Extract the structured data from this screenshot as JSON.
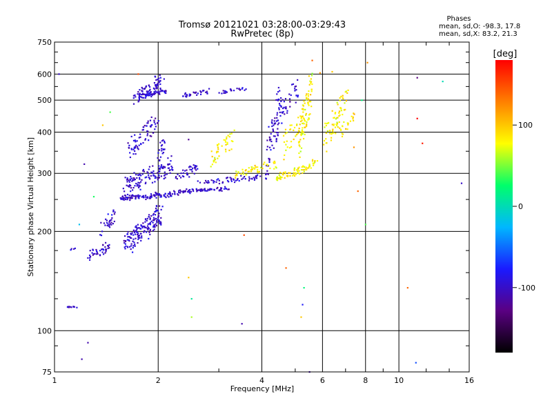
{
  "header": {
    "title_line1": "Tromsø 20121021 03:28:00-03:29:43",
    "title_line2": "RwPretec (8p)",
    "phases_title": "Phases",
    "phases_o": "mean, sd,O: -98.3, 17.8",
    "phases_x": "mean, sd,X: 83.2, 21.3"
  },
  "colorbar": {
    "unit_label": "[deg]",
    "ticks": [
      {
        "value": 100,
        "label": "100"
      },
      {
        "value": 0,
        "label": "0"
      },
      {
        "value": -100,
        "label": "-100"
      }
    ],
    "range": [
      -180,
      180
    ],
    "gradient_colors": [
      "#000000",
      "#5a0082",
      "#1a1aff",
      "#00b7ff",
      "#00ff6a",
      "#ffff00",
      "#ff8000",
      "#ff0000"
    ]
  },
  "chart_data": {
    "type": "scatter",
    "title": "Tromsø 20121021 03:28:00-03:29:43",
    "subtitle": "RwPretec (8p)",
    "xlabel": "Frequency [MHz]",
    "ylabel": "Stationary phase Virtual Height [km]",
    "xscale": "log",
    "yscale": "log",
    "xlim": [
      1,
      16
    ],
    "ylim": [
      75,
      750
    ],
    "grid": true,
    "x_ticks": [
      {
        "value": 1,
        "label": "1"
      },
      {
        "value": 2,
        "label": "2"
      },
      {
        "value": 4,
        "label": "4"
      },
      {
        "value": 6,
        "label": "6"
      },
      {
        "value": 8,
        "label": "8"
      },
      {
        "value": 10,
        "label": "10"
      },
      {
        "value": 16,
        "label": "16"
      }
    ],
    "x_minor_ticks": [
      3,
      5,
      7,
      9,
      12,
      14
    ],
    "y_ticks": [
      {
        "value": 75,
        "label": "75"
      },
      {
        "value": 100,
        "label": "100"
      },
      {
        "value": 200,
        "label": "200"
      },
      {
        "value": 300,
        "label": "300"
      },
      {
        "value": 400,
        "label": "400"
      },
      {
        "value": 500,
        "label": "500"
      },
      {
        "value": 600,
        "label": "600"
      },
      {
        "value": 750,
        "label": "750"
      }
    ],
    "y_minor_ticks": [
      90,
      125,
      150,
      175,
      250,
      350,
      450,
      550,
      650,
      700
    ],
    "series": [
      {
        "polarity": "O",
        "phase_mean": -98.3,
        "phase_sd": 17.8,
        "segments": [
          {
            "x0": 1.05,
            "x1": 1.18,
            "h0": 118,
            "h1": 118,
            "n": 10,
            "spread": 0.015
          },
          {
            "x0": 1.1,
            "x1": 1.16,
            "h0": 175,
            "h1": 178,
            "n": 4,
            "spread": 0.02
          },
          {
            "x0": 1.25,
            "x1": 1.45,
            "h0": 165,
            "h1": 185,
            "n": 40,
            "spread": 0.07
          },
          {
            "x0": 1.35,
            "x1": 1.5,
            "h0": 190,
            "h1": 235,
            "n": 30,
            "spread": 0.06
          },
          {
            "x0": 1.6,
            "x1": 2.05,
            "h0": 170,
            "h1": 240,
            "n": 160,
            "spread": 0.1
          },
          {
            "x0": 1.55,
            "x1": 2.3,
            "h0": 250,
            "h1": 262,
            "n": 110,
            "spread": 0.04
          },
          {
            "x0": 2.3,
            "x1": 3.2,
            "h0": 262,
            "h1": 272,
            "n": 70,
            "spread": 0.03
          },
          {
            "x0": 1.6,
            "x1": 2.2,
            "h0": 265,
            "h1": 330,
            "n": 130,
            "spread": 0.09
          },
          {
            "x0": 1.65,
            "x1": 2.0,
            "h0": 330,
            "h1": 460,
            "n": 70,
            "spread": 0.1
          },
          {
            "x0": 1.7,
            "x1": 2.05,
            "h0": 480,
            "h1": 600,
            "n": 70,
            "spread": 0.08
          },
          {
            "x0": 1.75,
            "x1": 2.1,
            "h0": 505,
            "h1": 540,
            "n": 60,
            "spread": 0.03
          },
          {
            "x0": 2.35,
            "x1": 2.8,
            "h0": 510,
            "h1": 540,
            "n": 30,
            "spread": 0.03
          },
          {
            "x0": 3.0,
            "x1": 3.6,
            "h0": 520,
            "h1": 550,
            "n": 25,
            "spread": 0.03
          },
          {
            "x0": 2.0,
            "x1": 2.1,
            "h0": 320,
            "h1": 400,
            "n": 20,
            "spread": 0.05
          },
          {
            "x0": 2.25,
            "x1": 2.6,
            "h0": 285,
            "h1": 320,
            "n": 35,
            "spread": 0.05
          },
          {
            "x0": 4.15,
            "x1": 4.55,
            "h0": 290,
            "h1": 580,
            "n": 70,
            "spread": 0.06
          },
          {
            "x0": 4.55,
            "x1": 5.1,
            "h0": 420,
            "h1": 590,
            "n": 35,
            "spread": 0.06
          },
          {
            "x0": 2.6,
            "x1": 4.2,
            "h0": 275,
            "h1": 300,
            "n": 60,
            "spread": 0.03
          }
        ]
      },
      {
        "polarity": "X",
        "phase_mean": 83.2,
        "phase_sd": 21.3,
        "segments": [
          {
            "x0": 2.8,
            "x1": 3.3,
            "h0": 300,
            "h1": 420,
            "n": 40,
            "spread": 0.06
          },
          {
            "x0": 3.3,
            "x1": 4.4,
            "h0": 290,
            "h1": 330,
            "n": 50,
            "spread": 0.04
          },
          {
            "x0": 4.4,
            "x1": 5.4,
            "h0": 282,
            "h1": 320,
            "n": 60,
            "spread": 0.03
          },
          {
            "x0": 5.1,
            "x1": 5.6,
            "h0": 320,
            "h1": 640,
            "n": 80,
            "spread": 0.05
          },
          {
            "x0": 4.6,
            "x1": 5.5,
            "h0": 330,
            "h1": 500,
            "n": 40,
            "spread": 0.06
          },
          {
            "x0": 6.0,
            "x1": 7.1,
            "h0": 340,
            "h1": 560,
            "n": 70,
            "spread": 0.06
          },
          {
            "x0": 6.8,
            "x1": 7.5,
            "h0": 380,
            "h1": 480,
            "n": 20,
            "spread": 0.05
          },
          {
            "x0": 5.4,
            "x1": 5.8,
            "h0": 300,
            "h1": 340,
            "n": 15,
            "spread": 0.04
          }
        ]
      },
      {
        "polarity": "scatter",
        "points": [
          {
            "x": 1.03,
            "h": 600,
            "phase": -100
          },
          {
            "x": 1.22,
            "h": 320,
            "phase": -110
          },
          {
            "x": 1.3,
            "h": 255,
            "phase": 30
          },
          {
            "x": 1.38,
            "h": 420,
            "phase": 100
          },
          {
            "x": 1.45,
            "h": 460,
            "phase": 40
          },
          {
            "x": 1.18,
            "h": 210,
            "phase": -20
          },
          {
            "x": 1.25,
            "h": 92,
            "phase": -110
          },
          {
            "x": 1.2,
            "h": 82,
            "phase": -110
          },
          {
            "x": 1.75,
            "h": 600,
            "phase": 150
          },
          {
            "x": 2.45,
            "h": 380,
            "phase": -120
          },
          {
            "x": 2.5,
            "h": 125,
            "phase": 10
          },
          {
            "x": 2.5,
            "h": 110,
            "phase": 60
          },
          {
            "x": 2.45,
            "h": 145,
            "phase": 100
          },
          {
            "x": 3.5,
            "h": 105,
            "phase": -110
          },
          {
            "x": 3.55,
            "h": 195,
            "phase": 150
          },
          {
            "x": 4.7,
            "h": 155,
            "phase": 140
          },
          {
            "x": 5.3,
            "h": 135,
            "phase": 20
          },
          {
            "x": 5.25,
            "h": 120,
            "phase": -80
          },
          {
            "x": 5.2,
            "h": 110,
            "phase": 100
          },
          {
            "x": 5.5,
            "h": 75,
            "phase": -110
          },
          {
            "x": 5.6,
            "h": 660,
            "phase": 140
          },
          {
            "x": 5.9,
            "h": 605,
            "phase": 120
          },
          {
            "x": 7.8,
            "h": 500,
            "phase": 20
          },
          {
            "x": 7.6,
            "h": 265,
            "phase": 140
          },
          {
            "x": 8.0,
            "h": 210,
            "phase": 40
          },
          {
            "x": 10.6,
            "h": 135,
            "phase": 140
          },
          {
            "x": 11.3,
            "h": 585,
            "phase": -130
          },
          {
            "x": 11.3,
            "h": 440,
            "phase": 180
          },
          {
            "x": 11.7,
            "h": 370,
            "phase": 170
          },
          {
            "x": 11.2,
            "h": 80,
            "phase": -60
          },
          {
            "x": 13.4,
            "h": 570,
            "phase": 0
          },
          {
            "x": 15.2,
            "h": 280,
            "phase": -100
          },
          {
            "x": 8.1,
            "h": 650,
            "phase": 120
          },
          {
            "x": 6.4,
            "h": 610,
            "phase": 100
          },
          {
            "x": 7.4,
            "h": 360,
            "phase": 120
          }
        ]
      }
    ]
  }
}
